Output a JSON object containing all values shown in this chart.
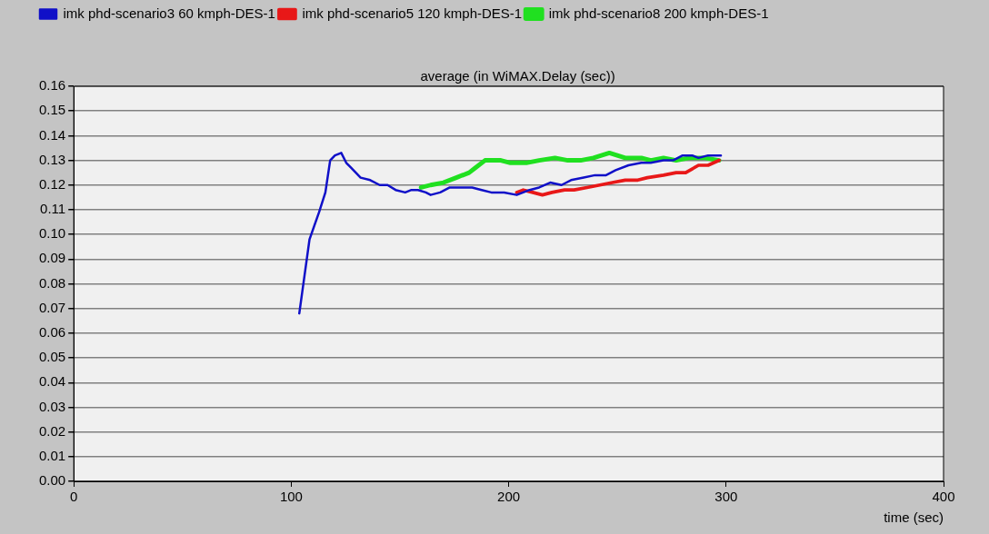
{
  "chart_data": {
    "type": "line",
    "title": "average (in WiMAX.Delay (sec))",
    "xlabel": "time (sec)",
    "xlim": [
      0,
      400
    ],
    "xticks": [
      0,
      100,
      200,
      300,
      400
    ],
    "ylim": [
      0,
      0.16
    ],
    "yticks": [
      {
        "value": 0,
        "label": "0.00"
      },
      {
        "value": 0.01,
        "label": "0.01"
      },
      {
        "value": 0.02,
        "label": "0.02"
      },
      {
        "value": 0.03,
        "label": "0.03"
      },
      {
        "value": 0.04,
        "label": "0.04"
      },
      {
        "value": 0.05,
        "label": "0.05"
      },
      {
        "value": 0.06,
        "label": "0.06"
      },
      {
        "value": 0.07,
        "label": "0.07"
      },
      {
        "value": 0.08,
        "label": "0.08"
      },
      {
        "value": 0.09,
        "label": "0.09"
      },
      {
        "value": 0.1,
        "label": "0.10"
      },
      {
        "value": 0.11,
        "label": "0.11"
      },
      {
        "value": 0.12,
        "label": "0.12"
      },
      {
        "value": 0.13,
        "label": "0.13"
      },
      {
        "value": 0.14,
        "label": "0.14"
      },
      {
        "value": 0.15,
        "label": "0.15"
      },
      {
        "value": 0.16,
        "label": "0.16"
      }
    ],
    "grid": "y",
    "legend": "top left",
    "marker": "none",
    "line_style": "solid",
    "series": [
      {
        "name": "imk phd-scenario3 60 kmph-DES-1",
        "color": "#1010c8",
        "x": [
          103.7,
          108.4,
          112.8,
          115.7,
          117.9,
          120.1,
          123,
          125.3,
          127.5,
          131.9,
          136.3,
          140.7,
          144.3,
          148,
          152.4,
          155.3,
          158.3,
          161.9,
          164.1,
          168.5,
          172.9,
          178.8,
          183.2,
          187.6,
          192,
          197.9,
          203.7,
          209.6,
          214,
          219.1,
          224.3,
          228.7,
          234.5,
          239.7,
          244.8,
          249.2,
          255.1,
          261,
          265.3,
          271.2,
          275.6,
          280,
          284.4,
          287.3,
          291.7,
          297.6
        ],
        "values": [
          0.068,
          0.098,
          0.109,
          0.117,
          0.13,
          0.132,
          0.133,
          0.129,
          0.127,
          0.123,
          0.122,
          0.12,
          0.12,
          0.118,
          0.117,
          0.118,
          0.118,
          0.117,
          0.116,
          0.117,
          0.119,
          0.119,
          0.119,
          0.118,
          0.117,
          0.117,
          0.116,
          0.118,
          0.119,
          0.121,
          0.12,
          0.122,
          0.123,
          0.124,
          0.124,
          0.126,
          0.128,
          0.129,
          0.129,
          0.13,
          0.13,
          0.132,
          0.132,
          0.131,
          0.132,
          0.132
        ]
      },
      {
        "name": "imk phd-scenario5 120 kmph-DES-1",
        "color": "#e81818",
        "x": [
          203.7,
          206.7,
          211.1,
          215.5,
          219.9,
          225.7,
          230.1,
          236,
          241.9,
          247.7,
          253.6,
          259.4,
          263.8,
          271.2,
          277,
          281.4,
          287.3,
          291.7,
          296.8
        ],
        "values": [
          0.117,
          0.118,
          0.117,
          0.116,
          0.117,
          0.118,
          0.118,
          0.119,
          0.12,
          0.121,
          0.122,
          0.122,
          0.123,
          0.124,
          0.125,
          0.125,
          0.128,
          0.128,
          0.13
        ]
      },
      {
        "name": "imk phd-scenario8 200 kmph-DES-1",
        "color": "#20e020",
        "x": [
          159.7,
          164.1,
          170,
          175.9,
          181.8,
          184.7,
          189.1,
          196.4,
          200.8,
          208.1,
          214,
          221.3,
          227.2,
          233.1,
          239,
          246.3,
          253.6,
          261,
          265.4,
          271.2,
          277,
          282.9,
          290.2,
          296.8
        ],
        "values": [
          0.119,
          0.12,
          0.121,
          0.123,
          0.125,
          0.127,
          0.13,
          0.13,
          0.129,
          0.129,
          0.13,
          0.131,
          0.13,
          0.13,
          0.131,
          0.133,
          0.131,
          0.131,
          0.13,
          0.131,
          0.13,
          0.131,
          0.131,
          0.13
        ]
      }
    ]
  }
}
